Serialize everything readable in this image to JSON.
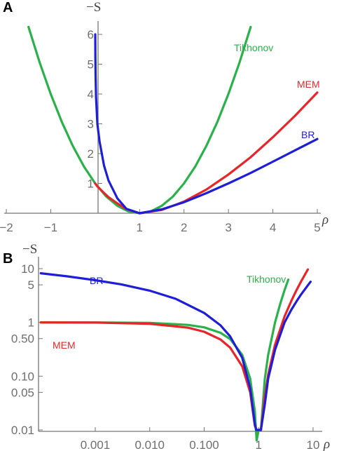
{
  "figure": {
    "panels": [
      "A",
      "B"
    ]
  },
  "chart_data": [
    {
      "panel": "A",
      "type": "line",
      "ylabel": "−S",
      "xlabel": "ρ",
      "xlim": [
        -2,
        5
      ],
      "ylim": [
        0,
        6.5
      ],
      "x_ticks": [
        -2,
        -1,
        1,
        2,
        3,
        4,
        5
      ],
      "y_ticks": [
        1,
        2,
        3,
        4,
        5,
        6
      ],
      "tick_labels_x": [
        "−2",
        "−1",
        "1",
        "2",
        "3",
        "4",
        "5"
      ],
      "tick_labels_y": [
        "1",
        "2",
        "3",
        "4",
        "5",
        "6"
      ],
      "series": [
        {
          "name": "Tikhonov",
          "color": "#2ab24a",
          "x": [
            -1.5,
            -1.25,
            -1.0,
            -0.75,
            -0.5,
            -0.25,
            0,
            0.25,
            0.5,
            0.75,
            1,
            1.25,
            1.5,
            1.75,
            2,
            2.25,
            2.5,
            2.75,
            3,
            3.25,
            3.5
          ],
          "values": [
            6.25,
            5.06,
            4.0,
            3.06,
            2.25,
            1.56,
            1.0,
            0.56,
            0.25,
            0.06,
            0,
            0.06,
            0.25,
            0.56,
            1.0,
            1.56,
            2.25,
            3.06,
            4.0,
            5.06,
            6.25
          ]
        },
        {
          "name": "MEM",
          "color": "#e8262a",
          "x": [
            0,
            0.05,
            0.1,
            0.2,
            0.3,
            0.5,
            0.7,
            1,
            1.5,
            2,
            2.5,
            3,
            3.5,
            4,
            4.5,
            5
          ],
          "values": [
            1.0,
            0.9,
            0.83,
            0.68,
            0.54,
            0.33,
            0.14,
            0,
            0.11,
            0.39,
            0.79,
            1.3,
            1.88,
            2.55,
            3.27,
            4.05
          ]
        },
        {
          "name": "BR",
          "color": "#1e1ed9",
          "x": [
            0.003,
            0.005,
            0.01,
            0.02,
            0.05,
            0.1,
            0.2,
            0.3,
            0.5,
            0.7,
            1,
            1.5,
            2,
            2.5,
            3,
            3.5,
            4,
            4.5,
            5
          ],
          "values": [
            6.0,
            5.2,
            4.6,
            3.9,
            3.0,
            2.4,
            1.6,
            1.1,
            0.5,
            0.15,
            0,
            0.13,
            0.37,
            0.67,
            1.0,
            1.35,
            1.73,
            2.11,
            2.49
          ]
        }
      ]
    },
    {
      "panel": "B",
      "type": "line",
      "ylabel": "−S",
      "xlabel": "ρ",
      "xscale": "log",
      "yscale": "log",
      "xlim": [
        0.0001,
        10
      ],
      "ylim": [
        0.01,
        16
      ],
      "x_ticks": [
        0.001,
        0.01,
        0.1,
        1,
        10
      ],
      "y_ticks": [
        0.01,
        0.05,
        0.1,
        0.5,
        1,
        5,
        10
      ],
      "tick_labels_x": [
        "0.001",
        "0.010",
        "0.100",
        "1",
        "10"
      ],
      "tick_labels_y": [
        "0.01",
        "0.05",
        "0.10",
        "0.50",
        "1",
        "5",
        "10"
      ],
      "series": [
        {
          "name": "Tikhonov",
          "color": "#2ab24a",
          "x": [
            0.0001,
            0.001,
            0.01,
            0.05,
            0.1,
            0.2,
            0.3,
            0.5,
            0.7,
            0.85,
            0.92,
            1.0,
            1.1,
            1.3,
            1.5,
            2,
            2.5,
            3,
            3.5
          ],
          "values": [
            1.0,
            0.998,
            0.98,
            0.9,
            0.81,
            0.64,
            0.49,
            0.25,
            0.09,
            0.0225,
            0.0064,
            0.01,
            0.01,
            0.09,
            0.25,
            1.0,
            2.25,
            4.0,
            6.25
          ]
        },
        {
          "name": "MEM",
          "color": "#e8262a",
          "x": [
            0.0001,
            0.001,
            0.01,
            0.05,
            0.1,
            0.2,
            0.3,
            0.5,
            0.7,
            0.85,
            0.92,
            1.0,
            1.1,
            1.3,
            1.5,
            2,
            3,
            4,
            5,
            6,
            8
          ],
          "values": [
            0.999,
            0.992,
            0.944,
            0.8,
            0.67,
            0.48,
            0.34,
            0.153,
            0.05,
            0.012,
            0.01,
            0.01,
            0.01,
            0.041,
            0.108,
            0.386,
            1.296,
            2.545,
            4.047,
            5.75,
            9.64
          ]
        },
        {
          "name": "BR",
          "color": "#1e1ed9",
          "x": [
            0.0001,
            0.0003,
            0.001,
            0.003,
            0.01,
            0.03,
            0.1,
            0.2,
            0.3,
            0.5,
            0.7,
            0.85,
            0.9,
            1.0,
            1.1,
            1.3,
            1.5,
            2,
            3,
            4,
            5,
            6,
            8,
            9
          ],
          "values": [
            8.2,
            7.2,
            6.1,
            5.1,
            3.9,
            2.75,
            1.5,
            0.88,
            0.55,
            0.22,
            0.06,
            0.013,
            0.01,
            0.01,
            0.01,
            0.03,
            0.09,
            0.31,
            1.0,
            1.73,
            2.49,
            3.3,
            4.9,
            5.7
          ]
        }
      ]
    }
  ]
}
